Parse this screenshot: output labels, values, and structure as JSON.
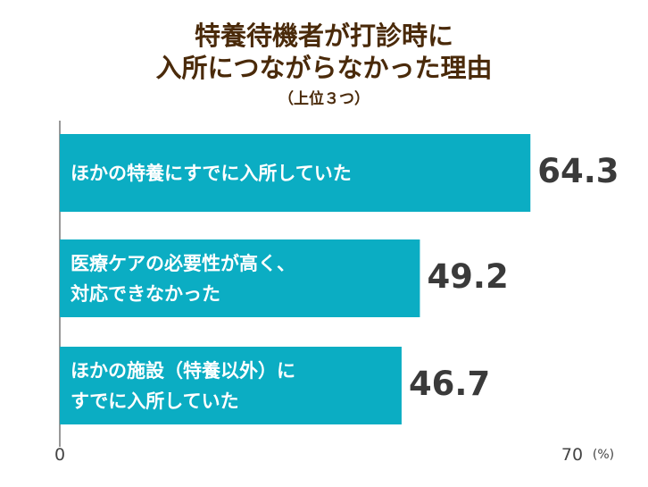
{
  "chart_data": {
    "type": "bar",
    "orientation": "horizontal",
    "title": "特養待機者が打診時に\n入所につながらなかった理由",
    "subtitle": "（上位３つ）",
    "categories": [
      "ほかの特養にすでに入所していた",
      "医療ケアの必要性が高く、\n対応できなかった",
      "ほかの施設（特養以外）に\nすでに入所していた"
    ],
    "values": [
      64.3,
      49.2,
      46.7
    ],
    "color": "#0badc3",
    "xlim": [
      0,
      70
    ],
    "xticks": [
      0,
      70
    ],
    "unit_label": "(%)"
  }
}
